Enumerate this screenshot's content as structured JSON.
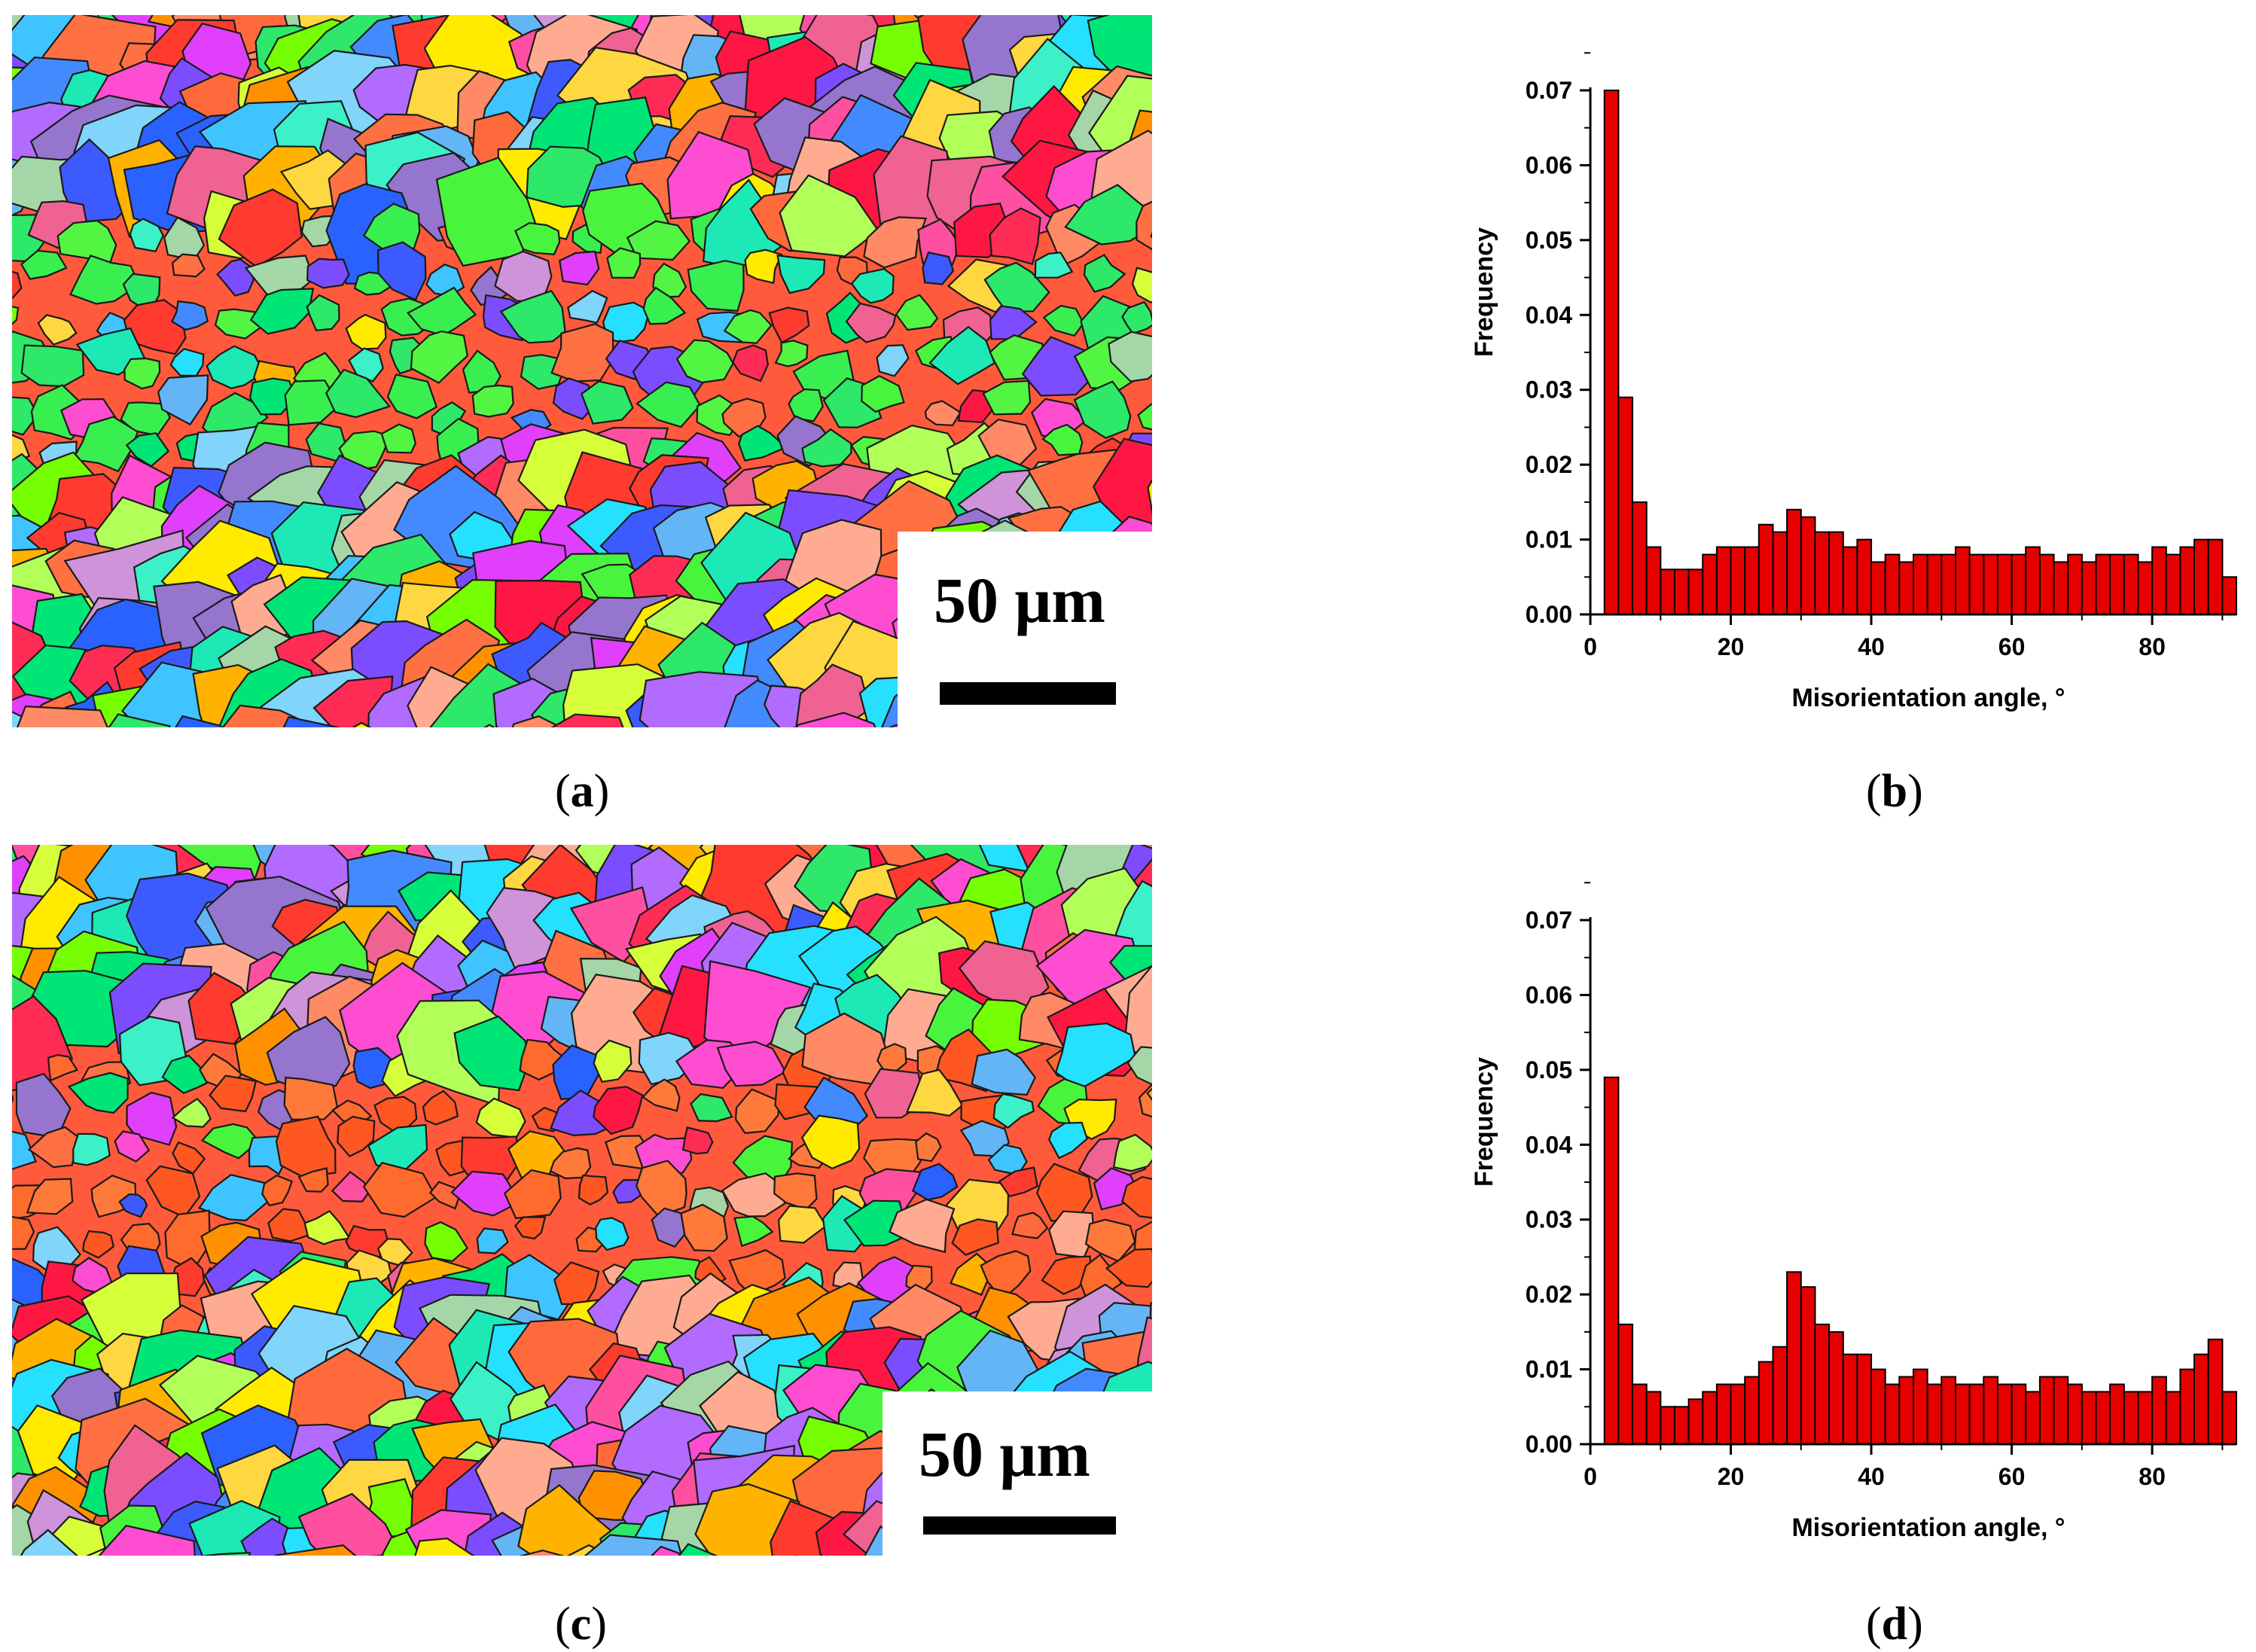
{
  "panels": {
    "a": {
      "label": "a",
      "scale_text": "50 μm"
    },
    "b": {
      "label": "b"
    },
    "c": {
      "label": "c",
      "scale_text": "50 μm"
    },
    "d": {
      "label": "d"
    }
  },
  "colors": {
    "bar_fill": "#e60000",
    "bar_stroke": "#000000",
    "axis": "#000000"
  },
  "chart_data": [
    {
      "id": "b",
      "type": "bar",
      "title": "",
      "xlabel": "Misorientation angle, °",
      "ylabel": "Frequency",
      "xlim": [
        0,
        92
      ],
      "ylim": [
        0,
        0.07
      ],
      "xticks": [
        "0",
        "20",
        "40",
        "60",
        "80"
      ],
      "yticks": [
        "0.00",
        "0.01",
        "0.02",
        "0.03",
        "0.04",
        "0.05",
        "0.06",
        "0.07"
      ],
      "bin_width": 2,
      "bin_centers": [
        3,
        5,
        7,
        9,
        11,
        13,
        15,
        17,
        19,
        21,
        23,
        25,
        27,
        29,
        31,
        33,
        35,
        37,
        39,
        41,
        43,
        45,
        47,
        49,
        51,
        53,
        55,
        57,
        59,
        61,
        63,
        65,
        67,
        69,
        71,
        73,
        75,
        77,
        79,
        81,
        83,
        85,
        87,
        89,
        91
      ],
      "values": [
        0.07,
        0.029,
        0.015,
        0.009,
        0.006,
        0.006,
        0.006,
        0.008,
        0.009,
        0.009,
        0.009,
        0.012,
        0.011,
        0.014,
        0.013,
        0.011,
        0.011,
        0.009,
        0.01,
        0.007,
        0.008,
        0.007,
        0.008,
        0.008,
        0.008,
        0.009,
        0.008,
        0.008,
        0.008,
        0.008,
        0.009,
        0.008,
        0.007,
        0.008,
        0.007,
        0.008,
        0.008,
        0.008,
        0.007,
        0.009,
        0.008,
        0.009,
        0.01,
        0.01,
        0.005
      ]
    },
    {
      "id": "d",
      "type": "bar",
      "title": "",
      "xlabel": "Misorientation angle, °",
      "ylabel": "Frequency",
      "xlim": [
        0,
        92
      ],
      "ylim": [
        0,
        0.07
      ],
      "xticks": [
        "0",
        "20",
        "40",
        "60",
        "80"
      ],
      "yticks": [
        "0.00",
        "0.01",
        "0.02",
        "0.03",
        "0.04",
        "0.05",
        "0.06",
        "0.07"
      ],
      "bin_width": 2,
      "bin_centers": [
        3,
        5,
        7,
        9,
        11,
        13,
        15,
        17,
        19,
        21,
        23,
        25,
        27,
        29,
        31,
        33,
        35,
        37,
        39,
        41,
        43,
        45,
        47,
        49,
        51,
        53,
        55,
        57,
        59,
        61,
        63,
        65,
        67,
        69,
        71,
        73,
        75,
        77,
        79,
        81,
        83,
        85,
        87,
        89,
        91
      ],
      "values": [
        0.049,
        0.016,
        0.008,
        0.007,
        0.005,
        0.005,
        0.006,
        0.007,
        0.008,
        0.008,
        0.009,
        0.011,
        0.013,
        0.023,
        0.021,
        0.016,
        0.015,
        0.012,
        0.012,
        0.01,
        0.008,
        0.009,
        0.01,
        0.008,
        0.009,
        0.008,
        0.008,
        0.009,
        0.008,
        0.008,
        0.007,
        0.009,
        0.009,
        0.008,
        0.007,
        0.007,
        0.008,
        0.007,
        0.007,
        0.009,
        0.007,
        0.01,
        0.012,
        0.014,
        0.007
      ]
    }
  ]
}
